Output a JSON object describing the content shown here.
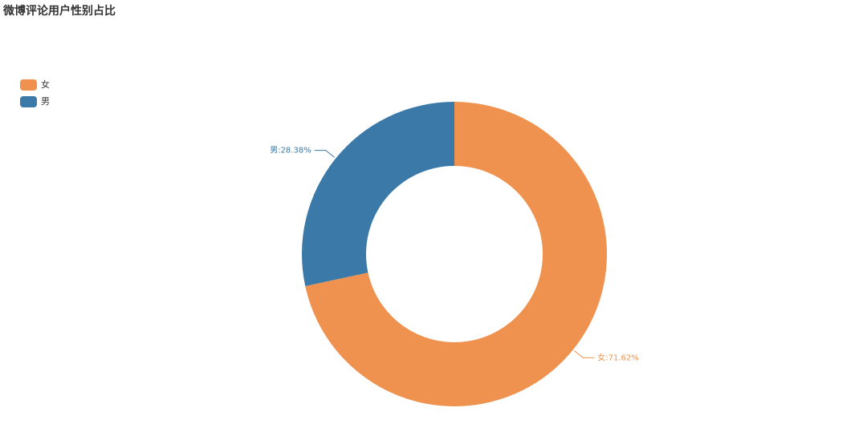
{
  "chart_data": {
    "type": "pie",
    "title": "微博评论用户性别占比",
    "categories": [
      "女",
      "男"
    ],
    "values": [
      71.62,
      28.38
    ],
    "value_labels": [
      "女:71.62%",
      "男:28.38%"
    ],
    "colors": [
      "#f0924f",
      "#3b7aa8"
    ],
    "legend": "top-left"
  }
}
